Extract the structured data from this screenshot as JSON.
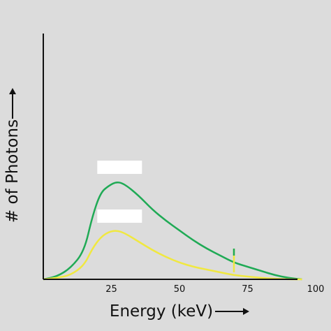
{
  "chart_data": {
    "type": "line",
    "xlabel": "Energy (keV)",
    "ylabel": "# of Photons",
    "xlim": [
      0,
      100
    ],
    "ylim": [
      0,
      100
    ],
    "x_ticks": [
      25,
      50,
      75,
      100
    ],
    "y_ticks": [],
    "grid": false,
    "series": [
      {
        "color": "#1faa55",
        "points": [
          [
            0,
            0
          ],
          [
            5,
            2
          ],
          [
            10,
            8
          ],
          [
            15,
            20
          ],
          [
            18,
            45
          ],
          [
            21,
            62
          ],
          [
            24,
            67
          ],
          [
            27,
            70
          ],
          [
            30,
            68
          ],
          [
            35,
            60
          ],
          [
            40,
            50
          ],
          [
            45,
            42
          ],
          [
            50,
            35
          ],
          [
            55,
            28
          ],
          [
            60,
            22
          ],
          [
            65,
            17
          ],
          [
            70,
            12
          ],
          [
            75,
            9
          ],
          [
            80,
            6
          ],
          [
            85,
            3
          ],
          [
            90,
            1
          ],
          [
            95,
            0
          ]
        ],
        "peak_label_value": ""
      },
      {
        "color": "#f0e840",
        "points": [
          [
            0,
            0
          ],
          [
            5,
            1
          ],
          [
            10,
            3
          ],
          [
            15,
            10
          ],
          [
            18,
            22
          ],
          [
            21,
            30
          ],
          [
            24,
            34
          ],
          [
            27,
            35
          ],
          [
            30,
            33
          ],
          [
            35,
            27
          ],
          [
            40,
            21
          ],
          [
            45,
            16
          ],
          [
            50,
            12
          ],
          [
            55,
            9
          ],
          [
            60,
            7
          ],
          [
            65,
            5
          ],
          [
            70,
            3
          ],
          [
            75,
            2
          ],
          [
            80,
            1
          ],
          [
            85,
            0.5
          ],
          [
            90,
            0
          ],
          [
            95,
            0
          ]
        ],
        "peak_label_value": ""
      }
    ],
    "markers": [
      {
        "x": 70,
        "y_from": 5,
        "y_to": 22,
        "color": "#f0e840"
      },
      {
        "x": 70,
        "y_from": 17,
        "y_to": 22,
        "color": "#1faa55"
      }
    ]
  }
}
